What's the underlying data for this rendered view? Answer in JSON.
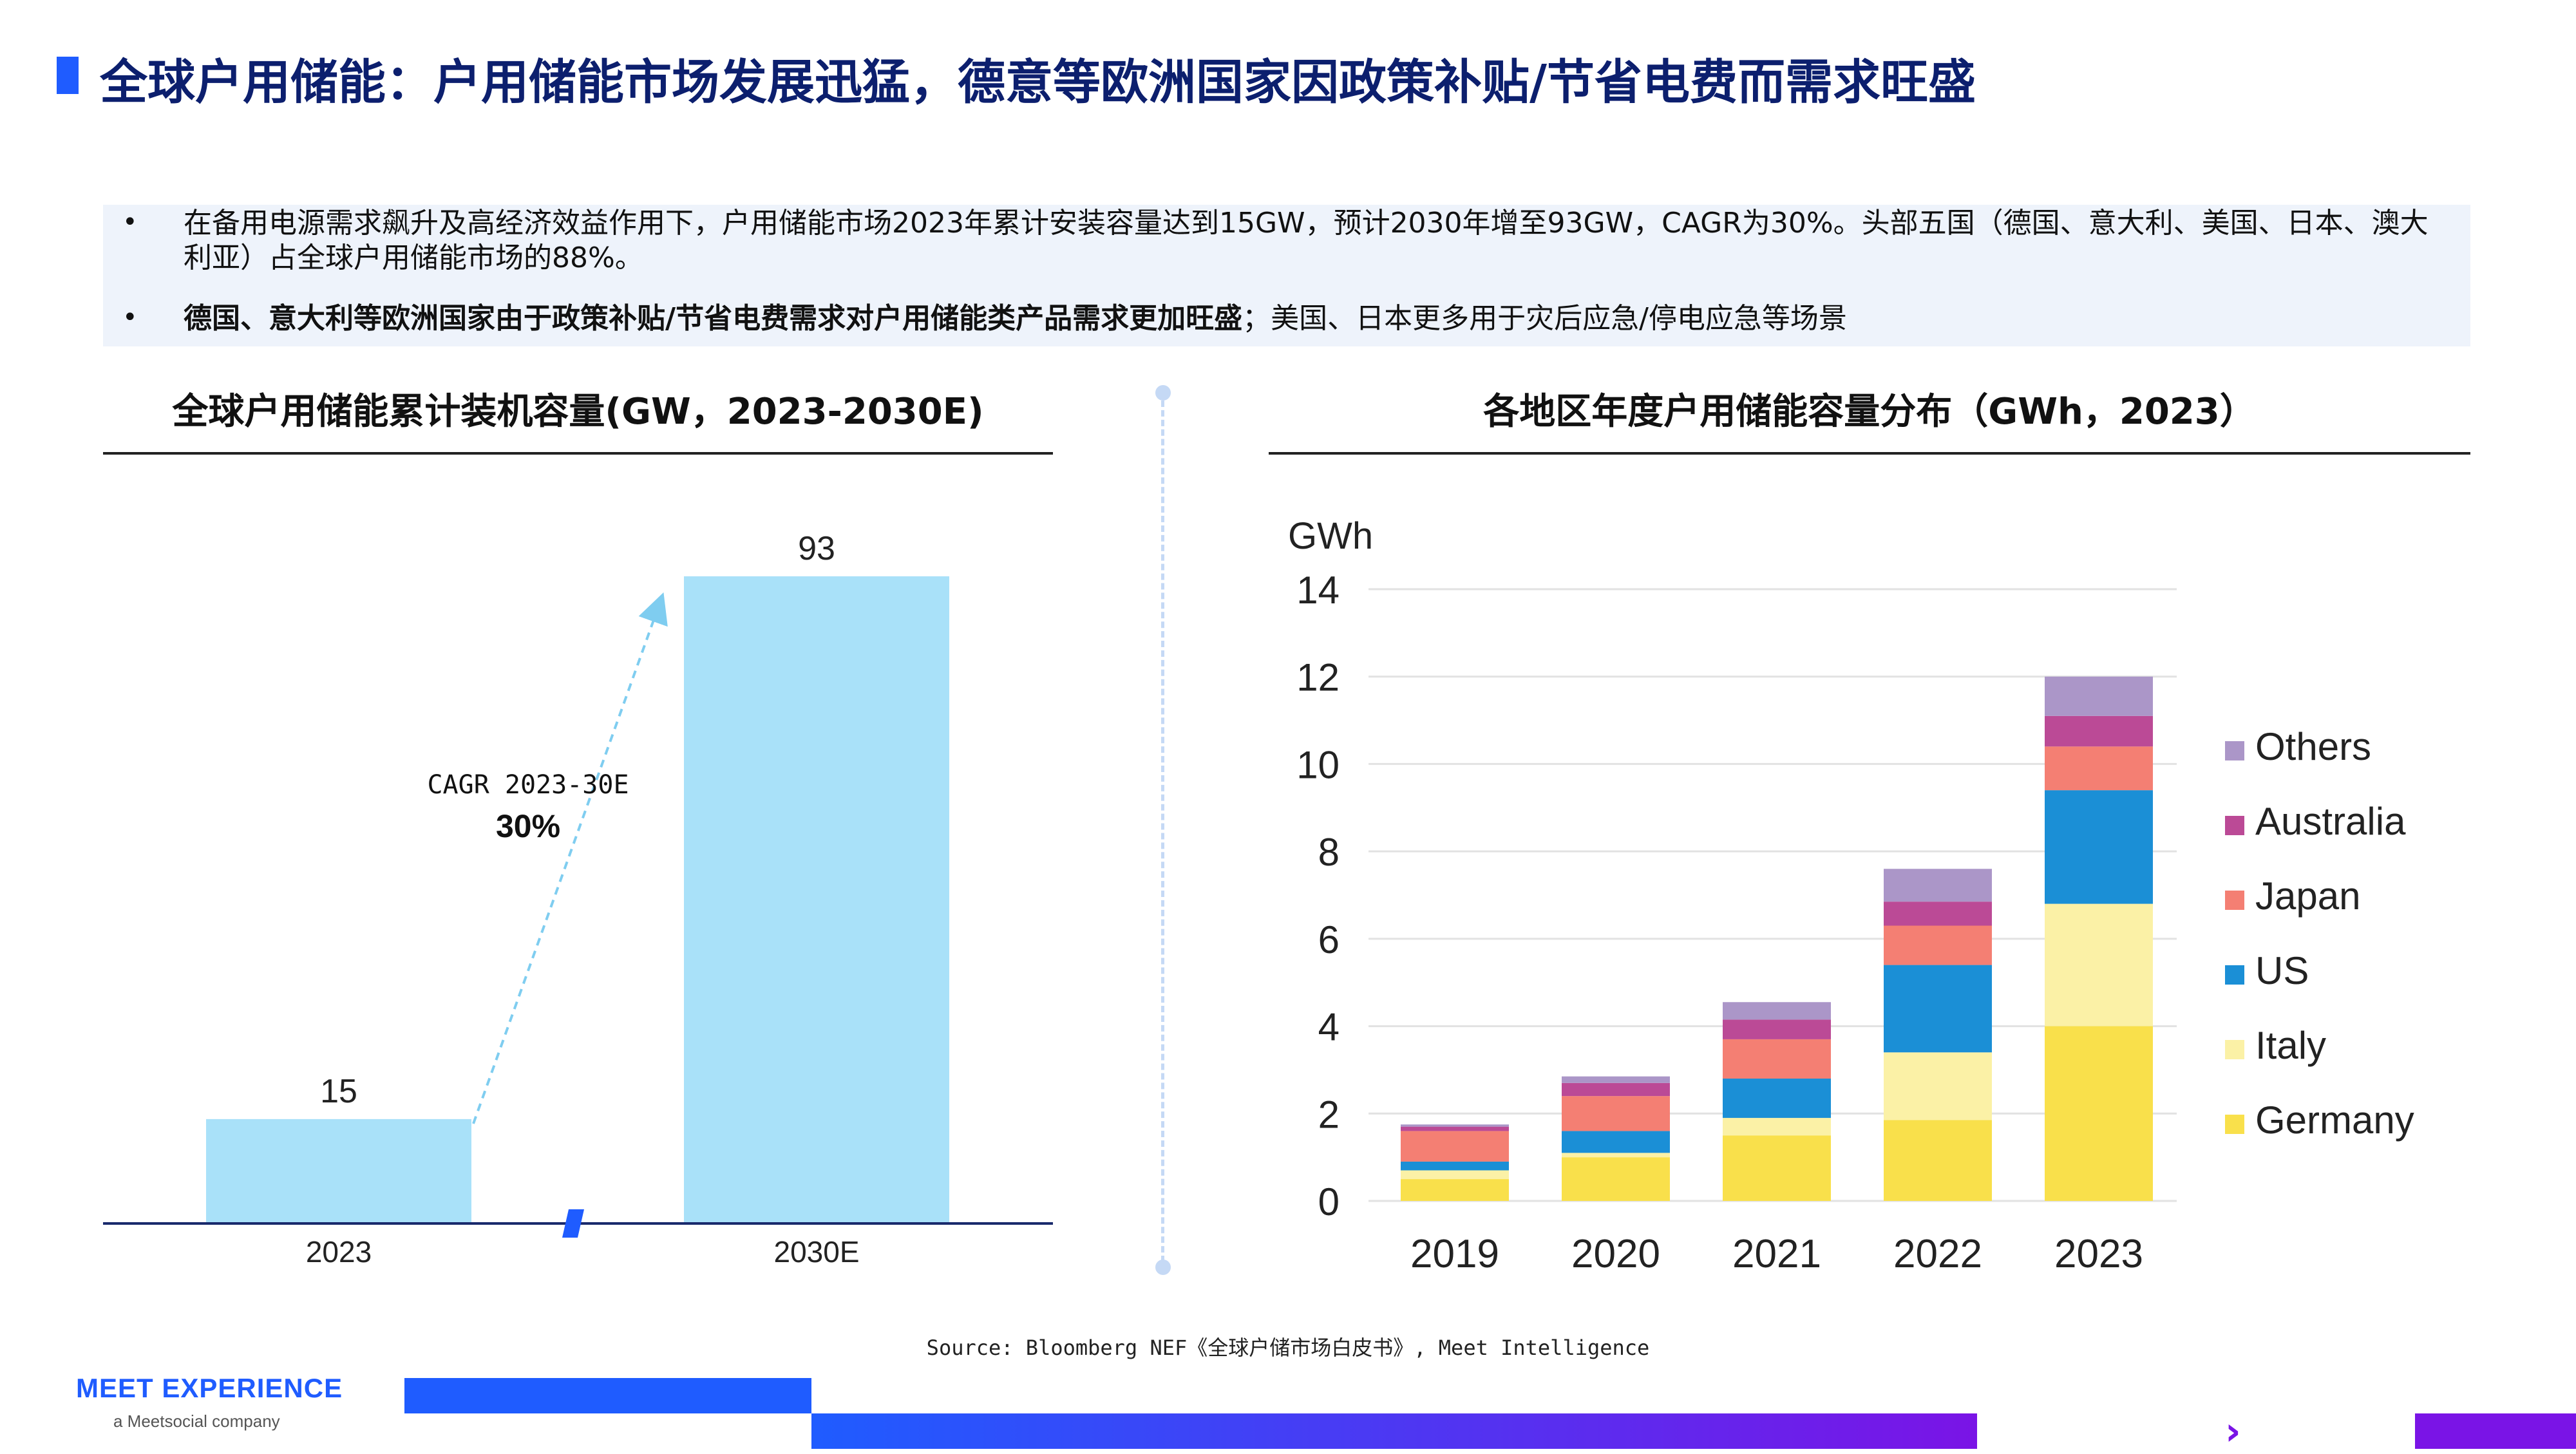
{
  "header": {
    "title": "全球户用储能：户用储能市场发展迅猛，德意等欧洲国家因政策补贴/节省电费而需求旺盛"
  },
  "summary": {
    "bullet_symbol": "•",
    "bullet1": "在备用电源需求飙升及高经济效益作用下，户用储能市场2023年累计安装容量达到15GW，预计2030年增至93GW，CAGR为30%。头部五国（德国、意大利、美国、日本、澳大利亚）占全球户用储能市场的88%。",
    "bullet2_bold": "德国、意大利等欧洲国家由于政策补贴/节省电费需求对户用储能类产品需求更加旺盛",
    "bullet2_rest": "；美国、日本更多用于灾后应急/停电应急等场景"
  },
  "left_chart": {
    "title": "全球户用储能累计装机容量(GW，2023-2030E)"
  },
  "right_chart": {
    "title": "各地区年度户用储能容量分布（GWh，2023）"
  },
  "chart_data": [
    {
      "type": "bar",
      "title": "全球户用储能累计装机容量(GW，2023-2030E)",
      "categories": [
        "2023",
        "2030E"
      ],
      "values": [
        15,
        93
      ],
      "data_labels": [
        "15",
        "93"
      ],
      "ylim": [
        0,
        100
      ],
      "annotation": {
        "label": "CAGR 2023-30E",
        "value": "30%"
      },
      "color": "#a9e1f9",
      "axis_break": true
    },
    {
      "type": "bar",
      "stacked": true,
      "title": "各地区年度户用储能容量分布（GWh，2023）",
      "ylabel": "GWh",
      "categories": [
        "2019",
        "2020",
        "2021",
        "2022",
        "2023"
      ],
      "yticks": [
        "0",
        "2",
        "4",
        "6",
        "8",
        "10",
        "12",
        "14"
      ],
      "ylim": [
        0,
        14
      ],
      "legend_position": "right",
      "series": [
        {
          "name": "Germany",
          "color": "#f9e04b",
          "values": [
            0.5,
            1.0,
            1.5,
            1.85,
            4.0
          ]
        },
        {
          "name": "Italy",
          "color": "#fbf1a6",
          "values": [
            0.2,
            0.1,
            0.4,
            1.55,
            2.8
          ]
        },
        {
          "name": "US",
          "color": "#1b8fd6",
          "values": [
            0.2,
            0.5,
            0.9,
            2.0,
            2.6
          ]
        },
        {
          "name": "Japan",
          "color": "#f47f73",
          "values": [
            0.7,
            0.8,
            0.9,
            0.9,
            1.0
          ]
        },
        {
          "name": "Australia",
          "color": "#bb4a96",
          "values": [
            0.1,
            0.3,
            0.45,
            0.55,
            0.7
          ]
        },
        {
          "name": "Others",
          "color": "#ab96c8",
          "values": [
            0.05,
            0.15,
            0.4,
            0.75,
            0.9
          ]
        }
      ]
    }
  ],
  "footer": {
    "source": "Source: Bloomberg NEF《全球户储市场白皮书》, Meet Intelligence",
    "logo": "MEET EXPERIENCE",
    "logo_sub": "a Meetsocial company",
    "logo_color": "#1f5cff",
    "bar_gradient_start": "#1f5cff",
    "bar_gradient_end": "#7a14e6"
  }
}
